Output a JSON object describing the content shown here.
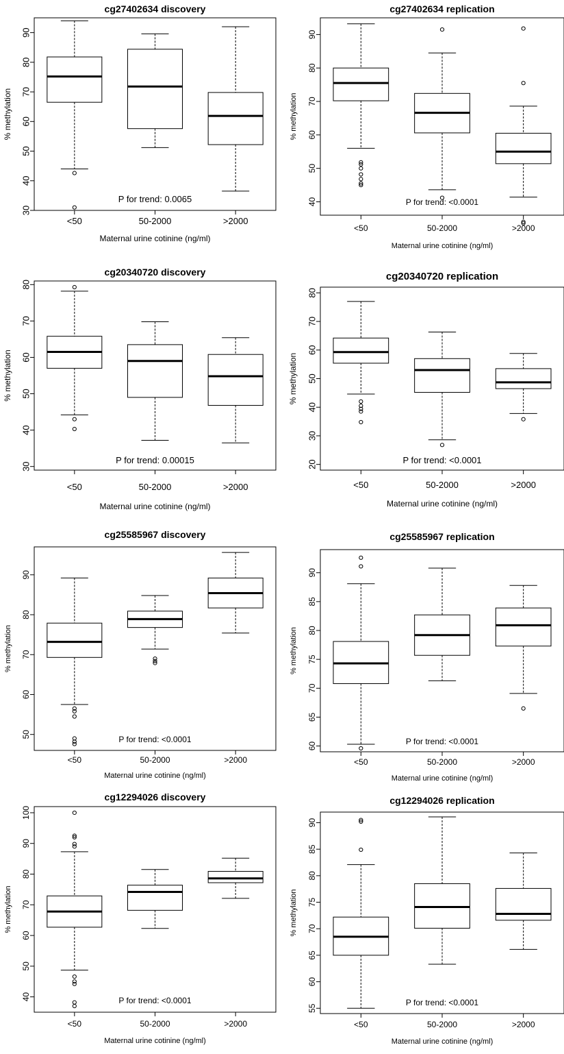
{
  "figure": {
    "panels": [
      {
        "title": "cg27402634 discovery",
        "ylabel": "% methylation",
        "xlabel": "Maternal urine cotinine (ng/ml)",
        "annotation": "P for trend: 0.0065",
        "chart_data": {
          "type": "boxplot",
          "categories": [
            "<50",
            "50-2000",
            ">2000"
          ],
          "ylim": [
            30,
            95
          ],
          "yticks": [
            30,
            40,
            50,
            60,
            70,
            80,
            90
          ],
          "boxes": [
            {
              "category": "<50",
              "lower_whisker": 44,
              "q1": 66.5,
              "median": 75.2,
              "q3": 81.8,
              "upper_whisker": 94,
              "outliers": [
                42.6,
                31
              ]
            },
            {
              "category": "50-2000",
              "lower_whisker": 51.2,
              "q1": 57.6,
              "median": 71.8,
              "q3": 84.4,
              "upper_whisker": 89.6,
              "outliers": []
            },
            {
              "category": ">2000",
              "lower_whisker": 36.5,
              "q1": 52.2,
              "median": 61.9,
              "q3": 69.8,
              "upper_whisker": 92,
              "outliers": []
            }
          ]
        }
      },
      {
        "title": "cg27402634 replication",
        "ylabel": "% methylation",
        "xlabel": "Maternal urine cotinine (ng/ml)",
        "annotation": "P for trend: <0.0001",
        "chart_data": {
          "type": "boxplot",
          "categories": [
            "<50",
            "50-2000",
            ">2000"
          ],
          "ylim": [
            36,
            95
          ],
          "yticks": [
            40,
            50,
            60,
            70,
            80,
            90
          ],
          "boxes": [
            {
              "category": "<50",
              "lower_whisker": 56,
              "q1": 70.2,
              "median": 75.5,
              "q3": 80,
              "upper_whisker": 93.2,
              "outliers": [
                51.8,
                51.2,
                50,
                48.2,
                46.8,
                45.5,
                45
              ]
            },
            {
              "category": "50-2000",
              "lower_whisker": 43.6,
              "q1": 60.6,
              "median": 66.6,
              "q3": 72.4,
              "upper_whisker": 84.5,
              "outliers": [
                91.5,
                41.2
              ]
            },
            {
              "category": ">2000",
              "lower_whisker": 41.4,
              "q1": 51.4,
              "median": 55,
              "q3": 60.5,
              "upper_whisker": 68.6,
              "outliers": [
                91.8,
                75.5,
                34,
                33.6
              ]
            }
          ]
        }
      },
      {
        "title": "cg20340720 discovery",
        "ylabel": "% methylation",
        "xlabel": "Maternal urine cotinine (ng/ml)",
        "annotation": "P for trend: 0.00015",
        "chart_data": {
          "type": "boxplot",
          "categories": [
            "<50",
            "50-2000",
            ">2000"
          ],
          "ylim": [
            29,
            81
          ],
          "yticks": [
            30,
            40,
            50,
            60,
            70,
            80
          ],
          "boxes": [
            {
              "category": "<50",
              "lower_whisker": 44.2,
              "q1": 57,
              "median": 61.5,
              "q3": 65.8,
              "upper_whisker": 78.2,
              "outliers": [
                79.3,
                43,
                40.3
              ]
            },
            {
              "category": "50-2000",
              "lower_whisker": 37.2,
              "q1": 49,
              "median": 59,
              "q3": 63.5,
              "upper_whisker": 69.8,
              "outliers": []
            },
            {
              "category": ">2000",
              "lower_whisker": 36.5,
              "q1": 46.8,
              "median": 54.8,
              "q3": 60.8,
              "upper_whisker": 65.4,
              "outliers": []
            }
          ]
        }
      },
      {
        "title": "cg20340720 replication",
        "ylabel": "% methylation",
        "xlabel": "Maternal urine cotinine (ng/ml)",
        "annotation": "P for trend: <0.0001",
        "chart_data": {
          "type": "boxplot",
          "categories": [
            "<50",
            "50-2000",
            ">2000"
          ],
          "ylim": [
            18,
            82
          ],
          "yticks": [
            20,
            30,
            40,
            50,
            60,
            70,
            80
          ],
          "boxes": [
            {
              "category": "<50",
              "lower_whisker": 44.6,
              "q1": 55.4,
              "median": 59.3,
              "q3": 64.2,
              "upper_whisker": 77,
              "outliers": [
                42,
                40.5,
                39.4,
                38.5,
                34.8
              ]
            },
            {
              "category": "50-2000",
              "lower_whisker": 28.6,
              "q1": 45.2,
              "median": 53,
              "q3": 57,
              "upper_whisker": 66.3,
              "outliers": [
                26.8
              ]
            },
            {
              "category": ">2000",
              "lower_whisker": 37.8,
              "q1": 46.5,
              "median": 48.7,
              "q3": 53.5,
              "upper_whisker": 58.8,
              "outliers": [
                35.8
              ]
            }
          ]
        }
      },
      {
        "title": "cg25585967 discovery",
        "ylabel": "% methylation",
        "xlabel": "Maternal urine cotinine (ng/ml)",
        "annotation": "P for trend: <0.0001",
        "chart_data": {
          "type": "boxplot",
          "categories": [
            "<50",
            "50-2000",
            ">2000"
          ],
          "ylim": [
            46,
            97
          ],
          "yticks": [
            50,
            60,
            70,
            80,
            90
          ],
          "boxes": [
            {
              "category": "<50",
              "lower_whisker": 57.5,
              "q1": 69.3,
              "median": 73.2,
              "q3": 77.9,
              "upper_whisker": 89.2,
              "outliers": [
                56.5,
                55.8,
                54.5,
                49,
                48.2,
                47.6
              ]
            },
            {
              "category": "50-2000",
              "lower_whisker": 71.4,
              "q1": 76.8,
              "median": 78.9,
              "q3": 80.9,
              "upper_whisker": 84.8,
              "outliers": [
                69,
                68.4,
                67.9
              ]
            },
            {
              "category": ">2000",
              "lower_whisker": 75.4,
              "q1": 81.7,
              "median": 85.4,
              "q3": 89.2,
              "upper_whisker": 95.6,
              "outliers": []
            }
          ]
        }
      },
      {
        "title": "cg25585967 replication",
        "ylabel": "% methylation",
        "xlabel": "Maternal urine cotinine (ng/ml)",
        "annotation": "P for trend: <0.0001",
        "chart_data": {
          "type": "boxplot",
          "categories": [
            "<50",
            "50-2000",
            ">2000"
          ],
          "ylim": [
            59,
            94
          ],
          "yticks": [
            60,
            65,
            70,
            75,
            80,
            85,
            90
          ],
          "boxes": [
            {
              "category": "<50",
              "lower_whisker": 60.3,
              "q1": 70.8,
              "median": 74.3,
              "q3": 78.1,
              "upper_whisker": 88.1,
              "outliers": [
                92.6,
                91.1,
                59.6
              ]
            },
            {
              "category": "50-2000",
              "lower_whisker": 71.3,
              "q1": 75.7,
              "median": 79.2,
              "q3": 82.7,
              "upper_whisker": 90.8,
              "outliers": []
            },
            {
              "category": ">2000",
              "lower_whisker": 69.1,
              "q1": 77.3,
              "median": 80.9,
              "q3": 83.9,
              "upper_whisker": 87.8,
              "outliers": [
                66.5
              ]
            }
          ]
        }
      },
      {
        "title": "cg12294026 discovery",
        "ylabel": "% methylation",
        "xlabel": "Maternal urine cotinine (ng/ml)",
        "annotation": "P for trend: <0.0001",
        "chart_data": {
          "type": "boxplot",
          "categories": [
            "<50",
            "50-2000",
            ">2000"
          ],
          "ylim": [
            35,
            102
          ],
          "yticks": [
            40,
            50,
            60,
            70,
            80,
            90,
            100
          ],
          "boxes": [
            {
              "category": "<50",
              "lower_whisker": 48.7,
              "q1": 62.7,
              "median": 67.8,
              "q3": 72.9,
              "upper_whisker": 87.3,
              "outliers": [
                100,
                92.5,
                92,
                89.8,
                89,
                46.6,
                45,
                44.2,
                38.2,
                37
              ]
            },
            {
              "category": "50-2000",
              "lower_whisker": 62.3,
              "q1": 68.2,
              "median": 74.2,
              "q3": 76.4,
              "upper_whisker": 81.5,
              "outliers": []
            },
            {
              "category": ">2000",
              "lower_whisker": 72.1,
              "q1": 77.2,
              "median": 78.6,
              "q3": 80.9,
              "upper_whisker": 85.2,
              "outliers": []
            }
          ]
        }
      },
      {
        "title": "cg12294026 replication",
        "ylabel": "% methylation",
        "xlabel": "Maternal urine cotinine (ng/ml)",
        "annotation": "P for trend: <0.0001",
        "chart_data": {
          "type": "boxplot",
          "categories": [
            "<50",
            "50-2000",
            ">2000"
          ],
          "ylim": [
            54,
            92
          ],
          "yticks": [
            55,
            60,
            65,
            70,
            75,
            80,
            85,
            90
          ],
          "boxes": [
            {
              "category": "<50",
              "lower_whisker": 55,
              "q1": 65,
              "median": 68.5,
              "q3": 72.2,
              "upper_whisker": 82.1,
              "outliers": [
                90.5,
                90.2,
                84.9
              ]
            },
            {
              "category": "50-2000",
              "lower_whisker": 63.3,
              "q1": 70.1,
              "median": 74.1,
              "q3": 78.5,
              "upper_whisker": 91.1,
              "outliers": []
            },
            {
              "category": ">2000",
              "lower_whisker": 66.1,
              "q1": 71.6,
              "median": 72.8,
              "q3": 77.6,
              "upper_whisker": 84.3,
              "outliers": []
            }
          ]
        }
      }
    ]
  }
}
